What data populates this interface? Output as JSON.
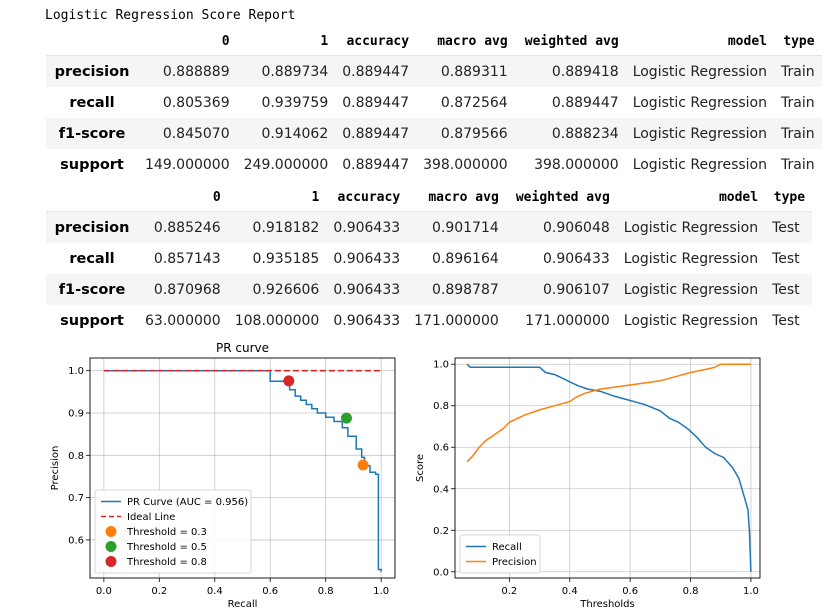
{
  "report": {
    "title": "Logistic Regression Score Report"
  },
  "columns": [
    "",
    "0",
    "1",
    "accuracy",
    "macro avg",
    "weighted avg",
    "model",
    "type"
  ],
  "train_table": {
    "rows": [
      {
        "label": "precision",
        "cells": [
          "0.888889",
          "0.889734",
          "0.889447",
          "0.889311",
          "0.889418",
          "Logistic Regression",
          "Train"
        ]
      },
      {
        "label": "recall",
        "cells": [
          "0.805369",
          "0.939759",
          "0.889447",
          "0.872564",
          "0.889447",
          "Logistic Regression",
          "Train"
        ]
      },
      {
        "label": "f1-score",
        "cells": [
          "0.845070",
          "0.914062",
          "0.889447",
          "0.879566",
          "0.888234",
          "Logistic Regression",
          "Train"
        ]
      },
      {
        "label": "support",
        "cells": [
          "149.000000",
          "249.000000",
          "0.889447",
          "398.000000",
          "398.000000",
          "Logistic Regression",
          "Train"
        ]
      }
    ]
  },
  "test_table": {
    "rows": [
      {
        "label": "precision",
        "cells": [
          "0.885246",
          "0.918182",
          "0.906433",
          "0.901714",
          "0.906048",
          "Logistic Regression",
          "Test"
        ]
      },
      {
        "label": "recall",
        "cells": [
          "0.857143",
          "0.935185",
          "0.906433",
          "0.896164",
          "0.906433",
          "Logistic Regression",
          "Test"
        ]
      },
      {
        "label": "f1-score",
        "cells": [
          "0.870968",
          "0.926606",
          "0.906433",
          "0.898787",
          "0.906107",
          "Logistic Regression",
          "Test"
        ]
      },
      {
        "label": "support",
        "cells": [
          "63.000000",
          "108.000000",
          "0.906433",
          "171.000000",
          "171.000000",
          "Logistic Regression",
          "Test"
        ]
      }
    ]
  },
  "chart_data": [
    {
      "type": "line",
      "title": "PR curve",
      "xlabel": "Recall",
      "ylabel": "Precision",
      "xlim": [
        -0.05,
        1.05
      ],
      "ylim": [
        0.51,
        1.03
      ],
      "xticks": [
        "0.0",
        "0.2",
        "0.4",
        "0.6",
        "0.8",
        "1.0"
      ],
      "yticks": [
        "0.6",
        "0.7",
        "0.8",
        "0.9",
        "1.0"
      ],
      "grid": true,
      "legend": "lower-left",
      "series": [
        {
          "name": "PR Curve (AUC = 0.956)",
          "style": "step",
          "color": "#1f77b4",
          "x": [
            1.0,
            1.0,
            0.99,
            0.99,
            0.98,
            0.98,
            0.96,
            0.96,
            0.94,
            0.94,
            0.93,
            0.93,
            0.91,
            0.91,
            0.88,
            0.88,
            0.86,
            0.86,
            0.83,
            0.83,
            0.8,
            0.8,
            0.77,
            0.77,
            0.75,
            0.75,
            0.73,
            0.73,
            0.71,
            0.71,
            0.69,
            0.69,
            0.67,
            0.67,
            0.6,
            0.6,
            0.0
          ],
          "y": [
            0.525,
            0.53,
            0.53,
            0.755,
            0.755,
            0.76,
            0.76,
            0.775,
            0.775,
            0.795,
            0.795,
            0.815,
            0.815,
            0.845,
            0.845,
            0.865,
            0.865,
            0.88,
            0.88,
            0.89,
            0.89,
            0.9,
            0.9,
            0.91,
            0.91,
            0.92,
            0.92,
            0.93,
            0.93,
            0.94,
            0.94,
            0.955,
            0.955,
            0.975,
            0.975,
            1.0,
            1.0
          ]
        },
        {
          "name": "Ideal Line",
          "style": "dashed",
          "color": "#d62728",
          "x": [
            0,
            1
          ],
          "y": [
            1,
            1
          ]
        }
      ],
      "points": [
        {
          "name": "Threshold = 0.3",
          "color": "#ff7f0e",
          "x": 0.935,
          "y": 0.777
        },
        {
          "name": "Threshold = 0.5",
          "color": "#2ca02c",
          "x": 0.875,
          "y": 0.888
        },
        {
          "name": "Threshold = 0.8",
          "color": "#d62728",
          "x": 0.667,
          "y": 0.976
        }
      ]
    },
    {
      "type": "line",
      "title": "",
      "xlabel": "Thresholds",
      "ylabel": "Score",
      "xlim": [
        0.02,
        1.03
      ],
      "ylim": [
        -0.03,
        1.03
      ],
      "xticks": [
        "0.2",
        "0.4",
        "0.6",
        "0.8",
        "1.0"
      ],
      "yticks": [
        "0.0",
        "0.2",
        "0.4",
        "0.6",
        "0.8",
        "1.0"
      ],
      "grid": true,
      "legend": "lower-left",
      "series": [
        {
          "name": "Recall",
          "color": "#1f77b4",
          "x": [
            0.06,
            0.07,
            0.1,
            0.2,
            0.3,
            0.32,
            0.35,
            0.38,
            0.4,
            0.43,
            0.46,
            0.5,
            0.55,
            0.6,
            0.65,
            0.7,
            0.73,
            0.76,
            0.79,
            0.82,
            0.85,
            0.88,
            0.91,
            0.94,
            0.96,
            0.98,
            0.99,
            0.995,
            1.0
          ],
          "y": [
            1.0,
            0.985,
            0.985,
            0.985,
            0.985,
            0.96,
            0.95,
            0.93,
            0.915,
            0.895,
            0.88,
            0.87,
            0.845,
            0.825,
            0.805,
            0.775,
            0.74,
            0.72,
            0.69,
            0.65,
            0.6,
            0.57,
            0.55,
            0.5,
            0.45,
            0.35,
            0.3,
            0.2,
            0.0
          ]
        },
        {
          "name": "Precision",
          "color": "#ff7f0e",
          "x": [
            0.06,
            0.08,
            0.1,
            0.12,
            0.15,
            0.18,
            0.2,
            0.25,
            0.3,
            0.35,
            0.4,
            0.42,
            0.45,
            0.5,
            0.55,
            0.6,
            0.65,
            0.7,
            0.75,
            0.8,
            0.85,
            0.88,
            0.9,
            1.0
          ],
          "y": [
            0.53,
            0.56,
            0.6,
            0.63,
            0.66,
            0.69,
            0.72,
            0.755,
            0.78,
            0.8,
            0.82,
            0.84,
            0.86,
            0.88,
            0.89,
            0.9,
            0.91,
            0.92,
            0.94,
            0.96,
            0.975,
            0.985,
            1.0,
            1.0
          ]
        }
      ]
    }
  ]
}
